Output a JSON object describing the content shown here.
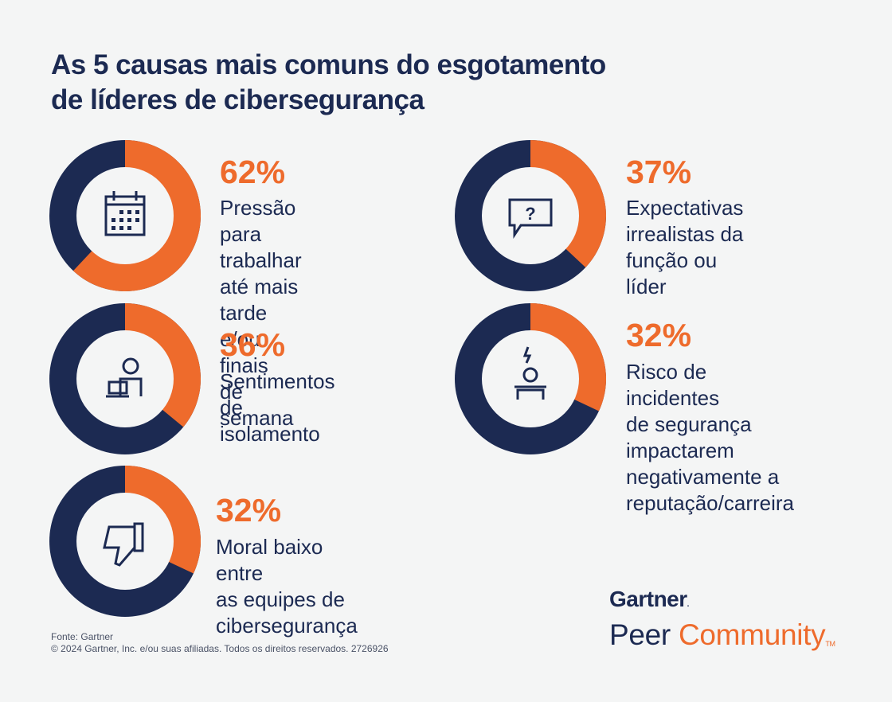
{
  "title": {
    "line1": "As 5 causas mais comuns do esgotamento",
    "line2": "de líderes de cibersegurança"
  },
  "colors": {
    "accent": "#ee6b2c",
    "navy": "#1c2a52",
    "background": "#f4f5f5"
  },
  "chart_data": [
    {
      "type": "pie",
      "title": "",
      "value": 62,
      "label": "62%",
      "lines": [
        "Pressão para",
        "trabalhar até mais",
        "tarde e/ou finais",
        "de semana"
      ],
      "icon": "calendar-icon"
    },
    {
      "type": "pie",
      "title": "",
      "value": 37,
      "label": "37%",
      "lines": [
        "Expectativas",
        "irrealistas da",
        "função ou líder"
      ],
      "icon": "question-speech-bubble-icon"
    },
    {
      "type": "pie",
      "title": "",
      "value": 36,
      "label": "36%",
      "lines": [
        "Sentimentos",
        "de isolamento"
      ],
      "icon": "person-at-laptop-icon"
    },
    {
      "type": "pie",
      "title": "",
      "value": 32,
      "label": "32%",
      "lines": [
        "Risco de incidentes",
        "de segurança",
        "impactarem",
        "negativamente a",
        "reputação/carreira"
      ],
      "icon": "person-lightning-icon"
    },
    {
      "type": "pie",
      "title": "",
      "value": 32,
      "label": "32%",
      "lines": [
        "Moral baixo entre",
        "as equipes de",
        "cibersegurança"
      ],
      "icon": "thumbs-down-icon"
    }
  ],
  "footer": {
    "source": "Fonte: Gartner",
    "copyright": "© 2024 Gartner, Inc. e/ou suas afiliadas. Todos os direitos reservados. 2726926"
  },
  "brand": {
    "gartner": "Gartner",
    "peer": "Peer",
    "community": "Community",
    "tm": "TM"
  }
}
